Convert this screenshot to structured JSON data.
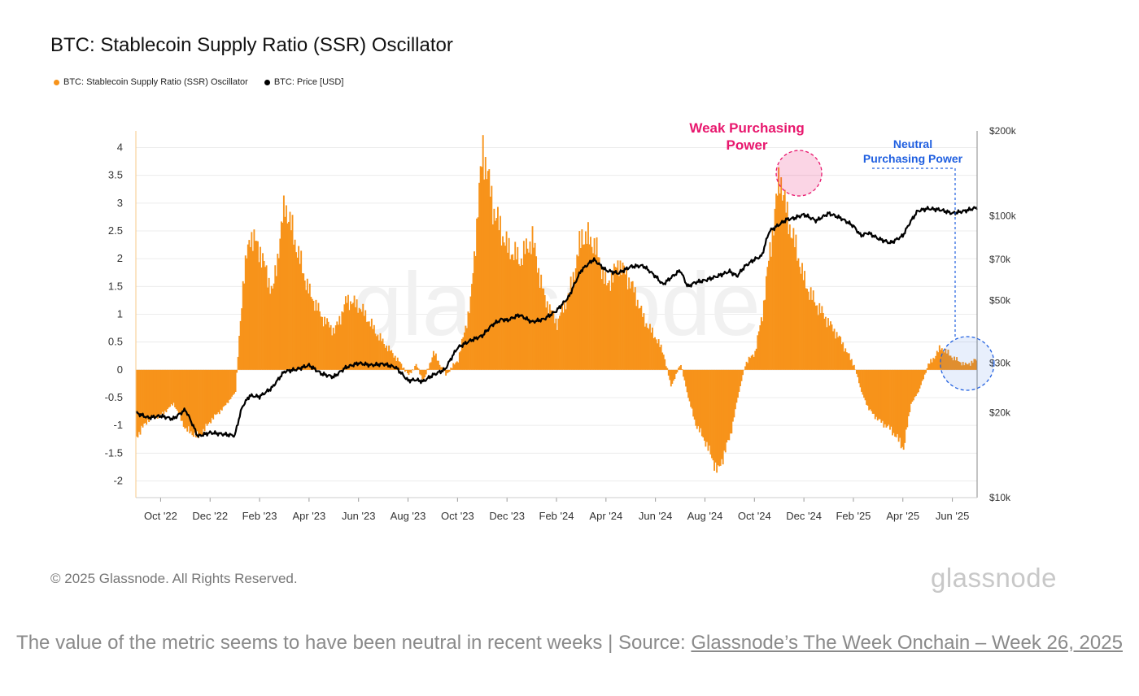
{
  "header": {
    "title": "BTC: Stablecoin Supply Ratio (SSR) Oscillator"
  },
  "colors": {
    "ssr": "#F7931A",
    "price": "#000000",
    "weak": "#E8186E",
    "neutral": "#1F5FE0",
    "grid": "#ececec"
  },
  "chart_data": {
    "type": "area",
    "title": "BTC: Stablecoin Supply Ratio (SSR) Oscillator",
    "legend": [
      "BTC: Stablecoin Supply Ratio (SSR) Oscillator",
      "BTC: Price [USD]"
    ],
    "legend_position": "top-left",
    "x_start": "2022-09-01",
    "x_end": "2025-06-30",
    "x_tick_labels": [
      "Oct '22",
      "Dec '22",
      "Feb '23",
      "Apr '23",
      "Jun '23",
      "Aug '23",
      "Oct '23",
      "Dec '23",
      "Feb '24",
      "Apr '24",
      "Jun '24",
      "Aug '24",
      "Oct '24",
      "Dec '24",
      "Feb '25",
      "Apr '25",
      "Jun '25"
    ],
    "x_tick_months": [
      1,
      3,
      5,
      7,
      9,
      11,
      13,
      15,
      17,
      19,
      21,
      23,
      25,
      27,
      29,
      31,
      33
    ],
    "y_left": {
      "label": "SSR Oscillator",
      "range": [
        -2.3,
        4.3
      ],
      "ticks": [
        -2,
        -1.5,
        -1,
        -0.5,
        0,
        0.5,
        1,
        1.5,
        2,
        2.5,
        3,
        3.5,
        4
      ],
      "tick_labels": [
        "-2",
        "-1.5",
        "-1",
        "-0.5",
        "0",
        "0.5",
        "1",
        "1.5",
        "2",
        "2.5",
        "3",
        "3.5",
        "4"
      ]
    },
    "y_right": {
      "label": "Price [USD]",
      "scale": "log",
      "range": [
        10000,
        200000
      ],
      "ticks": [
        10000,
        20000,
        30000,
        50000,
        70000,
        100000,
        200000
      ],
      "tick_labels": [
        "$10k",
        "$20k",
        "$30k",
        "$50k",
        "$70k",
        "$100k",
        "$200k"
      ]
    },
    "grid": true,
    "series": [
      {
        "name": "BTC: Stablecoin Supply Ratio (SSR) Oscillator",
        "axis": "left",
        "month_offset": [
          0,
          0.5,
          1,
          1.5,
          2,
          2.5,
          3,
          3.5,
          4,
          4.3,
          4.6,
          5,
          5.5,
          6,
          6.5,
          7,
          7.5,
          8,
          8.5,
          9,
          9.5,
          10,
          10.5,
          11,
          11.3,
          11.6,
          12,
          12.5,
          13,
          13.5,
          14,
          14.4,
          14.8,
          15,
          15.5,
          16,
          16.5,
          17,
          17.5,
          18,
          18.5,
          19,
          19.5,
          20,
          20.5,
          21,
          21.3,
          21.6,
          22,
          22.3,
          22.6,
          23,
          23.5,
          24,
          24.3,
          24.6,
          25,
          25.3,
          25.6,
          26,
          26.3,
          26.6,
          27,
          27.5,
          28,
          28.5,
          29,
          29.3,
          29.6,
          30,
          30.5,
          31,
          31.3,
          31.6,
          32,
          32.5,
          33,
          33.5,
          34
        ],
        "values": [
          -1.2,
          -0.9,
          -0.8,
          -0.6,
          -1.1,
          -1.2,
          -0.9,
          -0.7,
          -0.4,
          1.5,
          2.4,
          2.2,
          1.4,
          2.9,
          2.2,
          1.4,
          0.9,
          0.7,
          1.3,
          1.1,
          0.8,
          0.5,
          0.2,
          -0.1,
          0.1,
          -0.2,
          0.3,
          -0.1,
          0.2,
          1.2,
          3.9,
          3.0,
          2.5,
          2.2,
          1.9,
          2.4,
          1.3,
          0.8,
          1.4,
          2.5,
          2.2,
          1.5,
          2.0,
          1.5,
          0.9,
          0.6,
          0.3,
          -0.3,
          0.1,
          -0.5,
          -1.0,
          -1.3,
          -1.8,
          -1.2,
          -0.5,
          0.1,
          0.3,
          1.0,
          2.2,
          3.6,
          2.7,
          2.2,
          1.6,
          1.2,
          0.8,
          0.5,
          0.1,
          -0.4,
          -0.7,
          -0.9,
          -1.1,
          -1.4,
          -0.6,
          -0.4,
          0.1,
          0.4,
          0.2,
          0.1,
          0.2
        ]
      },
      {
        "name": "BTC: Price [USD]",
        "axis": "right",
        "month_offset": [
          0,
          0.5,
          1,
          1.5,
          2,
          2.5,
          3,
          3.5,
          4,
          4.3,
          4.6,
          5,
          5.5,
          6,
          6.5,
          7,
          7.5,
          8,
          8.5,
          9,
          9.5,
          10,
          10.5,
          11,
          11.3,
          11.6,
          12,
          12.5,
          13,
          13.5,
          14,
          14.4,
          14.8,
          15,
          15.5,
          16,
          16.5,
          17,
          17.5,
          18,
          18.5,
          19,
          19.5,
          20,
          20.5,
          21,
          21.3,
          21.6,
          22,
          22.3,
          22.6,
          23,
          23.5,
          24,
          24.3,
          24.6,
          25,
          25.3,
          25.6,
          26,
          26.3,
          26.6,
          27,
          27.5,
          28,
          28.5,
          29,
          29.3,
          29.6,
          30,
          30.5,
          31,
          31.3,
          31.6,
          32,
          32.5,
          33,
          33.5,
          34
        ],
        "values": [
          20000,
          19200,
          19500,
          19000,
          20500,
          16500,
          17000,
          16800,
          16600,
          21000,
          23000,
          22800,
          24500,
          28000,
          28500,
          29500,
          27500,
          26800,
          29000,
          30000,
          29500,
          29800,
          29000,
          26000,
          26200,
          25800,
          27200,
          28500,
          34000,
          36000,
          37500,
          41000,
          43000,
          42500,
          44500,
          42000,
          43000,
          46000,
          51500,
          64000,
          70000,
          64000,
          62500,
          66000,
          66500,
          61000,
          57000,
          60000,
          64000,
          56000,
          58000,
          59000,
          61000,
          63500,
          61000,
          66000,
          70000,
          72000,
          88000,
          93000,
          97000,
          98000,
          101000,
          96000,
          102000,
          98000,
          92000,
          85000,
          87000,
          83000,
          80000,
          85000,
          95000,
          104000,
          106000,
          105000,
          102000,
          104000,
          107000
        ]
      }
    ],
    "annotations": [
      {
        "lines": [
          "Weak Purchasing",
          "Power"
        ],
        "target_month": 26.8,
        "target_value": 3.0,
        "color": "#E8186E"
      },
      {
        "lines": [
          "Neutral",
          "Purchasing Power"
        ],
        "target_month": 33.6,
        "target_value": 0.1,
        "color": "#1F5FE0"
      }
    ]
  },
  "footer": {
    "copyright": "© 2025 Glassnode. All Rights Reserved.",
    "brand": "glassnode",
    "watermark": "glassnode"
  },
  "caption": {
    "text": "The value of the metric seems to have been neutral in recent weeks | Source: ",
    "link": "Glassnode’s The Week Onchain – Week 26, 2025"
  }
}
